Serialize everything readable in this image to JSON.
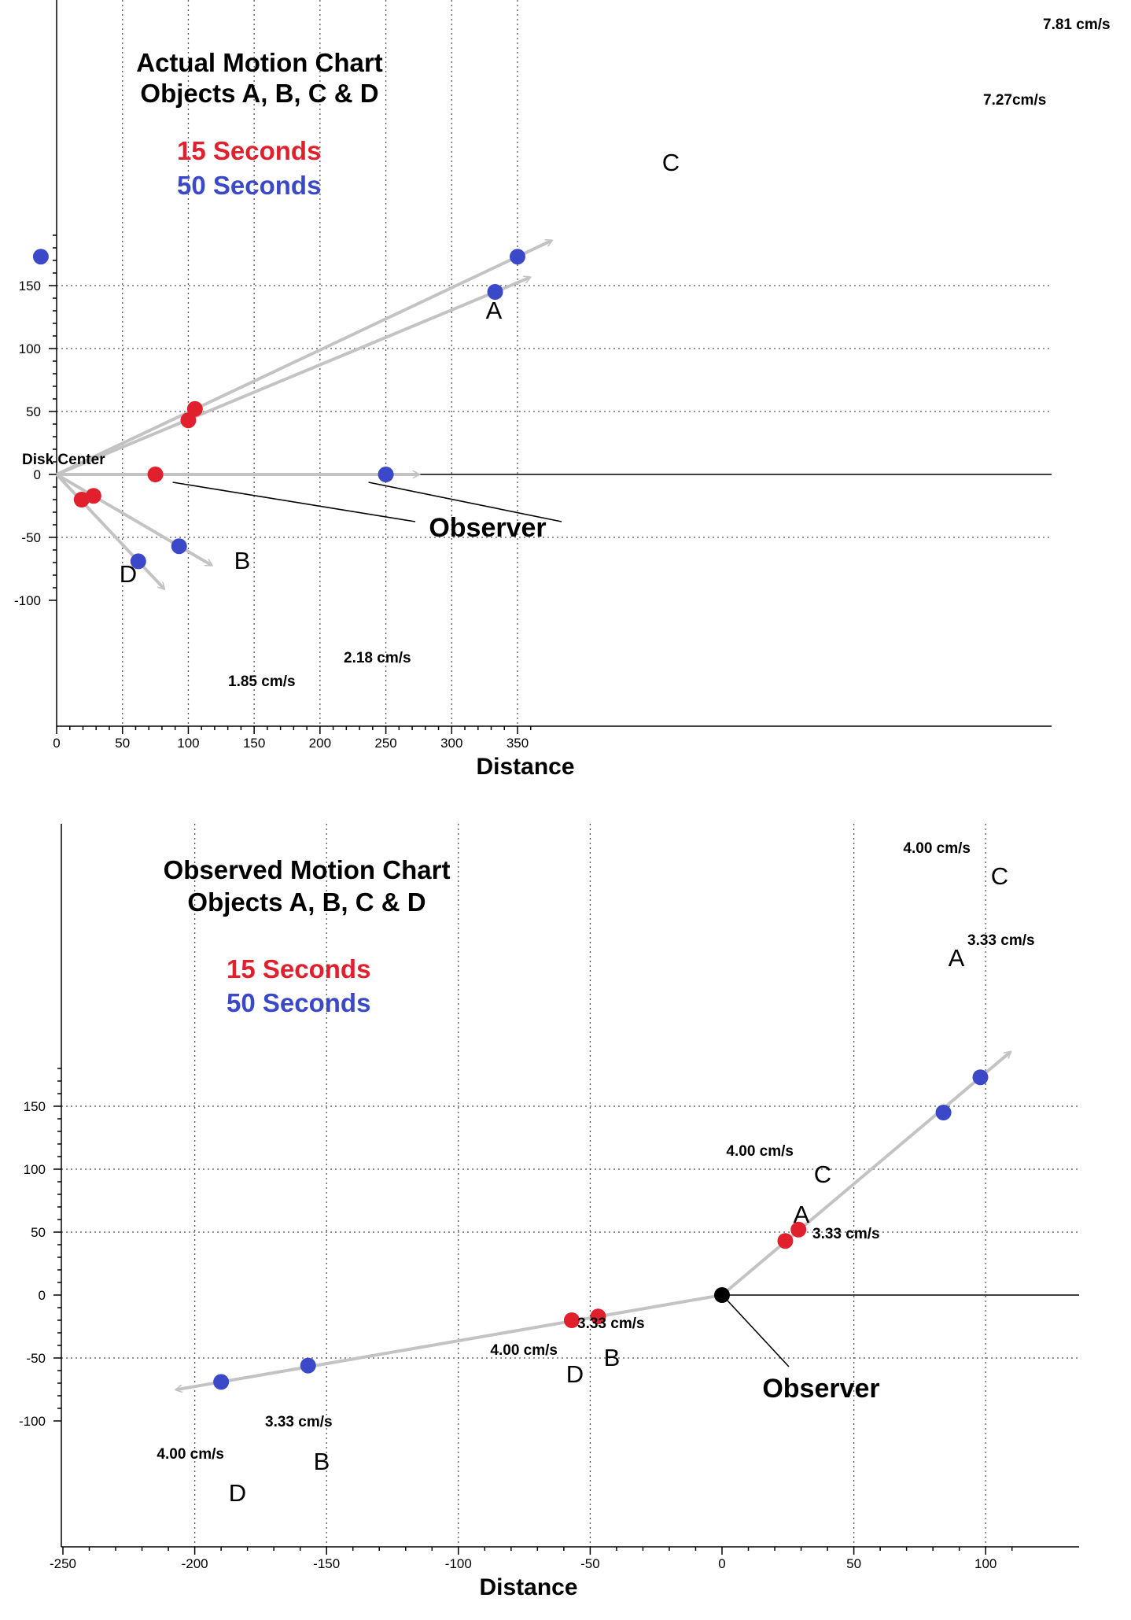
{
  "colors": {
    "t15": "#e0202c",
    "t50": "#3b49c9",
    "arrow": "#c3c3c3",
    "observer": "#000000"
  },
  "chart_data": [
    {
      "type": "scatter",
      "title": [
        "Actual Motion Chart",
        "Objects A, B, C & D"
      ],
      "xlabel": "Distance",
      "ylabel": "",
      "xlim": [
        0,
        375
      ],
      "ylim": [
        -100,
        190
      ],
      "xticks": [
        0,
        50,
        100,
        150,
        200,
        250,
        300,
        350
      ],
      "yticks": [
        -100,
        -50,
        0,
        50,
        100,
        150
      ],
      "grid": true,
      "legend": [
        {
          "name": "15 Seconds",
          "color": "#e0202c"
        },
        {
          "name": "50 Seconds",
          "color": "#3b49c9"
        }
      ],
      "origin_label": "Disk Center",
      "observer_label": "Observer",
      "stray_point": {
        "x": -12,
        "y": 173,
        "color": "#3b49c9"
      },
      "observer_points": [
        {
          "x": 75,
          "y": 0,
          "color": "#e0202c"
        },
        {
          "x": 250,
          "y": 0,
          "color": "#3b49c9"
        }
      ],
      "objects": [
        {
          "name": "A",
          "t15": {
            "x": 100,
            "y": 43
          },
          "t50": {
            "x": 333,
            "y": 145
          },
          "speed": "7.27cm/s"
        },
        {
          "name": "B",
          "t15": {
            "x": 28,
            "y": -17
          },
          "t50": {
            "x": 93,
            "y": -57
          },
          "speed": "2.18 cm/s"
        },
        {
          "name": "C",
          "t15": {
            "x": 105,
            "y": 52
          },
          "t50": {
            "x": 350,
            "y": 173
          },
          "speed": "7.81 cm/s"
        },
        {
          "name": "D",
          "t15": {
            "x": 19,
            "y": -20
          },
          "t50": {
            "x": 62,
            "y": -69
          },
          "speed": "1.85 cm/s"
        }
      ]
    },
    {
      "type": "scatter",
      "title": [
        "Observed Motion Chart",
        "Objects A, B, C & D"
      ],
      "xlabel": "Distance",
      "ylabel": "",
      "xlim": [
        -250,
        135
      ],
      "ylim": [
        -100,
        188
      ],
      "xticks": [
        -250,
        -200,
        -150,
        -100,
        -50,
        0,
        50,
        100
      ],
      "yticks": [
        -100,
        -50,
        0,
        50,
        100,
        150
      ],
      "grid": true,
      "legend": [
        {
          "name": "15 Seconds",
          "color": "#e0202c"
        },
        {
          "name": "50 Seconds",
          "color": "#3b49c9"
        }
      ],
      "observer_label": "Observer",
      "observer_point": {
        "x": 0,
        "y": 0
      },
      "objects": [
        {
          "name": "A",
          "t15": {
            "x": 24,
            "y": 43,
            "speed": "3.33 cm/s"
          },
          "t50": {
            "x": 84,
            "y": 145,
            "speed": "3.33 cm/s"
          }
        },
        {
          "name": "B",
          "t15": {
            "x": -47,
            "y": -17,
            "speed": "3.33 cm/s"
          },
          "t50": {
            "x": -157,
            "y": -56,
            "speed": "3.33 cm/s"
          }
        },
        {
          "name": "C",
          "t15": {
            "x": 29,
            "y": 52,
            "speed": "4.00 cm/s"
          },
          "t50": {
            "x": 98,
            "y": 173,
            "speed": "4.00 cm/s"
          }
        },
        {
          "name": "D",
          "t15": {
            "x": -57,
            "y": -20,
            "speed": "4.00 cm/s"
          },
          "t50": {
            "x": -190,
            "y": -69,
            "speed": "4.00 cm/s"
          }
        }
      ]
    }
  ]
}
